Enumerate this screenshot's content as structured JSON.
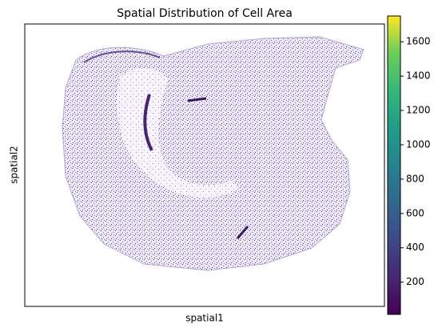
{
  "chart_data": {
    "type": "scatter",
    "title": "Spatial Distribution of Cell Area",
    "xlabel": "spatial1",
    "ylabel": "spatial2",
    "colorbar": {
      "cmap": "viridis",
      "lim": [
        12,
        1750
      ],
      "ticks": [
        200,
        400,
        600,
        800,
        1000,
        1200,
        1400,
        1600
      ]
    }
  }
}
